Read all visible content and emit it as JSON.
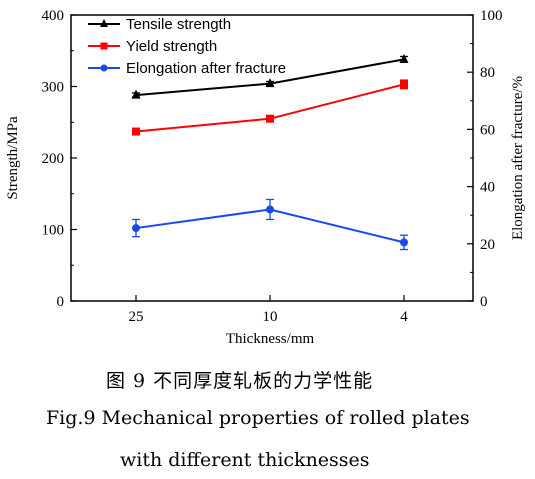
{
  "chart_data": {
    "type": "line",
    "categories": [
      "25",
      "10",
      "4"
    ],
    "xlabel": "Thickness/mm",
    "ylabel_left": "Strength/MPa",
    "ylabel_right": "Elongation after fracture/%",
    "ylim_left": [
      0,
      400
    ],
    "ylim_right": [
      0,
      100
    ],
    "yticks_left": [
      "0",
      "100",
      "200",
      "300",
      "400"
    ],
    "yticks_right": [
      "0",
      "20",
      "40",
      "60",
      "80",
      "100"
    ],
    "legend_position": "top-left",
    "grid": false,
    "series": [
      {
        "name": "Tensile strength",
        "axis": "left",
        "color": "#000000",
        "marker": "triangle",
        "values": [
          288,
          304,
          338
        ],
        "errors": [
          3,
          3,
          4
        ]
      },
      {
        "name": "Yield strength",
        "axis": "left",
        "color": "#ff0000",
        "marker": "square",
        "values": [
          237,
          255,
          303
        ],
        "errors": [
          4,
          4,
          6
        ]
      },
      {
        "name": "Elongation after fracture",
        "axis": "right",
        "color": "#1a48f0",
        "marker": "circle",
        "values": [
          25.5,
          32,
          20.5
        ],
        "errors": [
          3,
          3.5,
          2.5
        ]
      }
    ]
  },
  "caption": {
    "cn": "图 9    不同厚度轧板的力学性能",
    "en_line1": "Fig.9    Mechanical properties of rolled plates",
    "en_line2": "with different thicknesses"
  }
}
